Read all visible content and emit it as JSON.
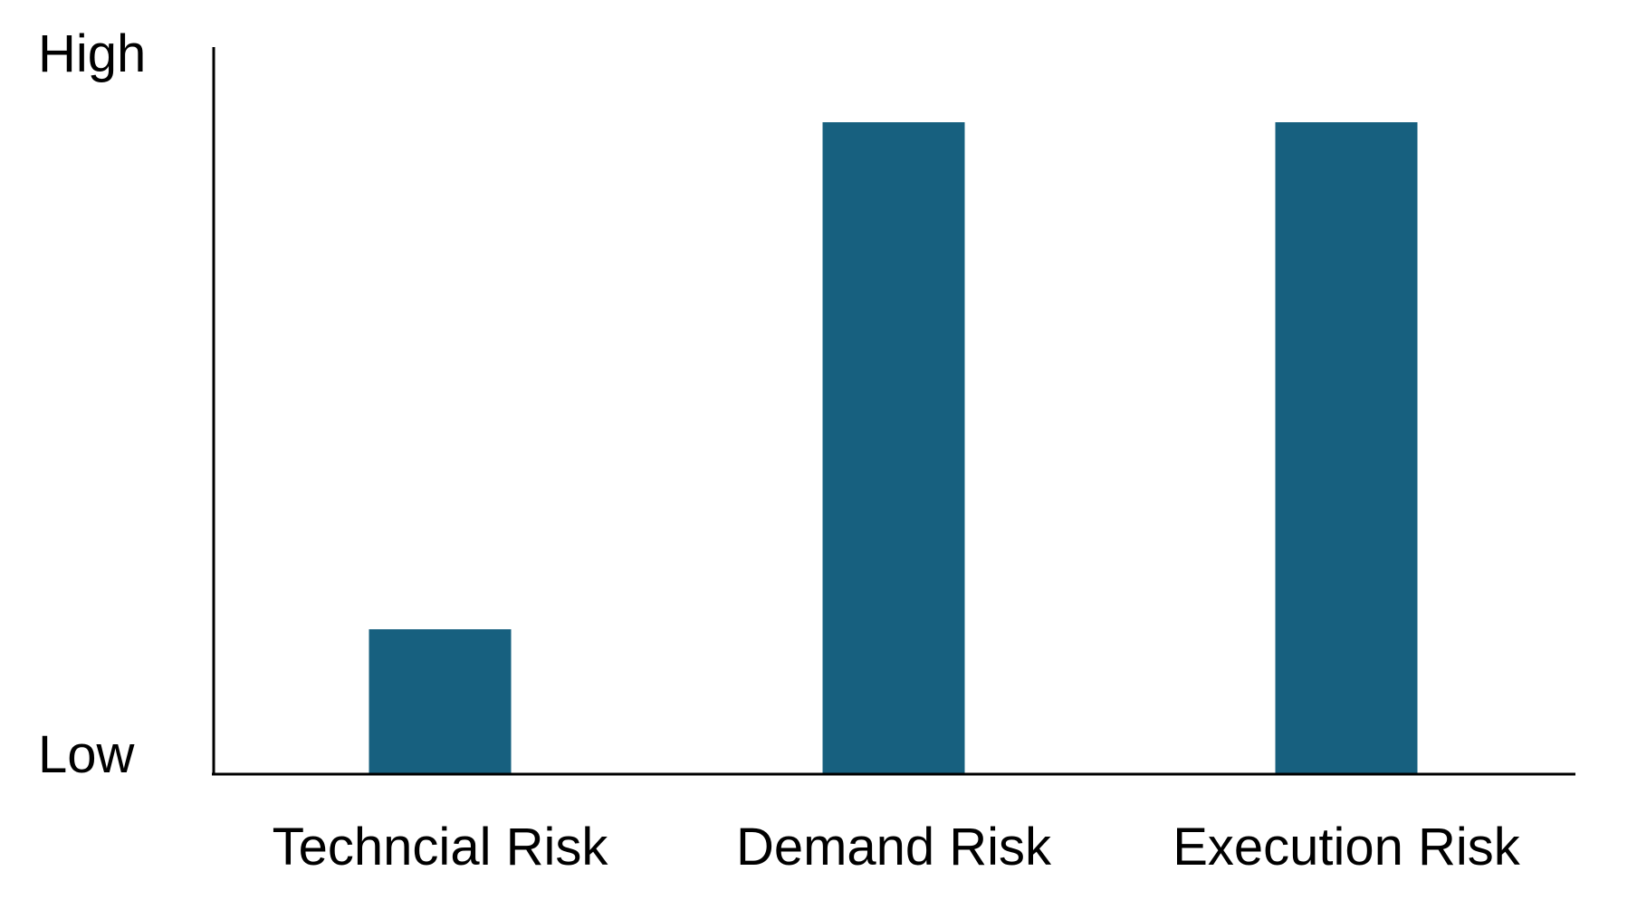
{
  "chart_data": {
    "type": "bar",
    "categories": [
      "Techncial Risk",
      "Demand Risk",
      "Execution Risk"
    ],
    "values": [
      0.2,
      0.9,
      0.9
    ],
    "ylim": [
      0,
      1
    ],
    "y_tick_labels": {
      "high": "High",
      "low": "Low"
    },
    "title": "",
    "xlabel": "",
    "ylabel": "",
    "legend": "none",
    "grid": false,
    "bar_color": "#17607F"
  }
}
